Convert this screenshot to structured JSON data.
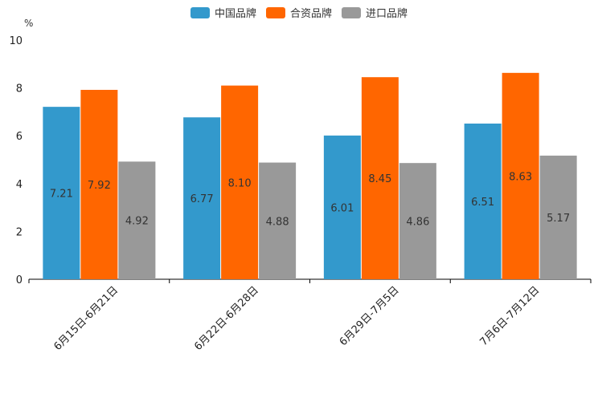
{
  "chart_data": {
    "type": "bar",
    "title": "",
    "unit_label": "%",
    "xlabel": "",
    "ylabel": "%",
    "ylim": [
      0,
      10
    ],
    "yticks": [
      "0",
      "2",
      "4",
      "6",
      "8",
      "10"
    ],
    "categories": [
      "6月15日-6月21日",
      "6月22日-6月28日",
      "6月29日-7月5日",
      "7月6日-7月12日"
    ],
    "series": [
      {
        "name": "中国品牌",
        "color": "#3399cc",
        "values": [
          7.21,
          6.77,
          6.01,
          6.51
        ],
        "labels": [
          "7.21",
          "6.77",
          "6.01",
          "6.51"
        ]
      },
      {
        "name": "合资品牌",
        "color": "#ff6600",
        "values": [
          7.92,
          8.1,
          8.45,
          8.63
        ],
        "labels": [
          "7.92",
          "8.10",
          "8.45",
          "8.63"
        ]
      },
      {
        "name": "进口品牌",
        "color": "#999999",
        "values": [
          4.92,
          4.88,
          4.86,
          5.17
        ],
        "labels": [
          "4.92",
          "4.88",
          "4.86",
          "5.17"
        ]
      }
    ],
    "legend_position": "top-center",
    "grid": false
  }
}
